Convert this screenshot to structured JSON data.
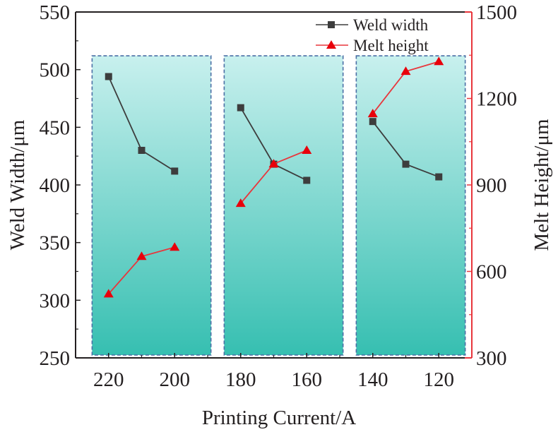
{
  "chart_data": {
    "type": "line",
    "title": "",
    "xlabel": "Printing Current/A",
    "ylabel": "Weld Width/μm",
    "y2label": "Melt Height/μm",
    "xlim": [
      230,
      110
    ],
    "ylim": [
      250,
      550
    ],
    "y2lim": [
      300,
      1500
    ],
    "x_ticks": [
      220,
      200,
      180,
      160,
      140,
      120
    ],
    "x_tick_labels": [
      "220",
      "200",
      "180",
      "160",
      "140",
      "120"
    ],
    "y_ticks": [
      250,
      300,
      350,
      400,
      450,
      500,
      550
    ],
    "y_tick_labels": [
      "250",
      "300",
      "350",
      "400",
      "450",
      "500",
      "550"
    ],
    "y2_ticks": [
      300,
      600,
      900,
      1200,
      1500
    ],
    "y2_tick_labels": [
      "300",
      "600",
      "900",
      "1200",
      "1500"
    ],
    "legend_position": "top-right",
    "groups": [
      {
        "x_range": [
          225,
          189
        ],
        "currents": [
          220,
          210,
          200
        ]
      },
      {
        "x_range": [
          185,
          149
        ],
        "currents": [
          180,
          170,
          160
        ]
      },
      {
        "x_range": [
          145,
          112
        ],
        "currents": [
          140,
          130,
          120
        ]
      }
    ],
    "group_top_value": 512,
    "series": [
      {
        "name": "Weld width",
        "axis": "left",
        "color": "#3d3d3d",
        "marker": "square",
        "segments": [
          {
            "x": [
              220,
              210,
              200
            ],
            "y": [
              494,
              430,
              412
            ]
          },
          {
            "x": [
              180,
              170,
              160
            ],
            "y": [
              467,
              418,
              404
            ]
          },
          {
            "x": [
              140,
              130,
              120
            ],
            "y": [
              455,
              418,
              407
            ]
          }
        ]
      },
      {
        "name": "Melt height",
        "axis": "right",
        "color": "#e8363c",
        "marker": "triangle",
        "segments": [
          {
            "x": [
              220,
              210,
              200
            ],
            "y": [
              522,
              652,
              684
            ]
          },
          {
            "x": [
              180,
              170,
              160
            ],
            "y": [
              836,
              973,
              1020
            ]
          },
          {
            "x": [
              140,
              130,
              120
            ],
            "y": [
              1147,
              1294,
              1328
            ]
          }
        ]
      }
    ]
  },
  "colors": {
    "axis": "#231f20",
    "right_axis": "#e8363c",
    "box_border": "#4a6fa5",
    "box_top": "#c8f0ee",
    "box_bottom": "#36bfb1",
    "marker_red": "#e8000b"
  }
}
